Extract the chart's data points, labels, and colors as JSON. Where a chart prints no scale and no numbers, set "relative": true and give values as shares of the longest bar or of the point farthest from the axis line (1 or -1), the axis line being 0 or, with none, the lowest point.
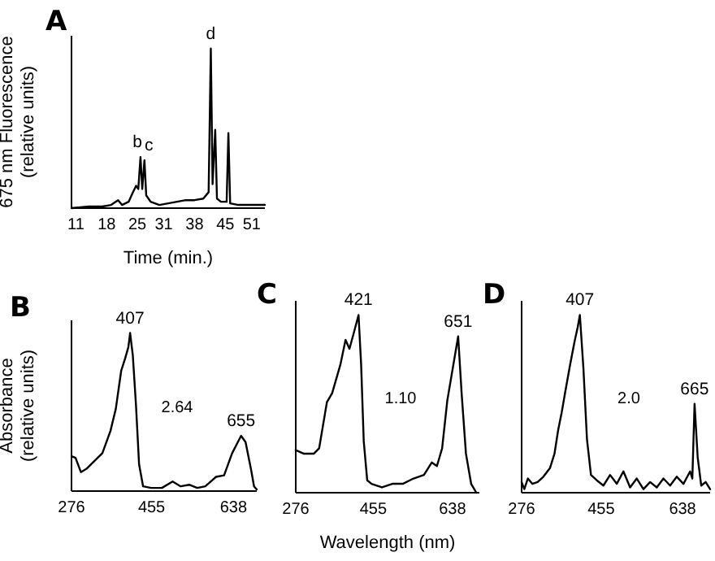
{
  "chart_data": [
    {
      "type": "line",
      "title": "A",
      "xlabel": "Time (min.)",
      "ylabel": "675 nm Fluorescence\n(relative units)",
      "relative": true,
      "tick_labels": "x",
      "xlim": [
        10,
        54
      ],
      "xticks": [
        11,
        18,
        25,
        31,
        38,
        45,
        51
      ],
      "series": [
        {
          "color": "#000000",
          "x": [
            10,
            14,
            17,
            19,
            20.6,
            21.5,
            23,
            24,
            24.7,
            25.2,
            25.7,
            26.1,
            26.6,
            27,
            28,
            30,
            32,
            34,
            36,
            38,
            40,
            41.2,
            41.7,
            42.1,
            42.7,
            43.1,
            44,
            45.3,
            45.7,
            46.1,
            48,
            51,
            54
          ],
          "values": [
            0,
            0.01,
            0.01,
            0.02,
            0.05,
            0.02,
            0.04,
            0.1,
            0.14,
            0.12,
            0.32,
            0.12,
            0.3,
            0.08,
            0.04,
            0.02,
            0.03,
            0.04,
            0.05,
            0.05,
            0.06,
            0.1,
            1,
            0.15,
            0.49,
            0.06,
            0.04,
            0.04,
            0.47,
            0.03,
            0.02,
            0.02,
            0.02
          ]
        }
      ],
      "annotations": [
        {
          "text": "b",
          "x": 25,
          "y": 0.32
        },
        {
          "text": "c",
          "x": 27.6,
          "y": 0.3
        },
        {
          "text": "d",
          "x": 41.7,
          "y": 1
        }
      ]
    },
    {
      "type": "line",
      "title": "B",
      "ylabel": "Absorbance\n(relative units)",
      "relative": true,
      "tick_labels": "x",
      "xlim": [
        276,
        690
      ],
      "xticks": [
        276,
        455,
        638
      ],
      "series": [
        {
          "color": "#000000",
          "x": [
            276,
            285,
            297,
            309,
            327,
            345,
            363,
            375,
            387,
            396,
            403,
            407,
            413,
            420,
            427,
            436,
            454,
            478,
            502,
            520,
            539,
            557,
            575,
            599,
            617,
            635,
            655,
            665,
            677,
            684,
            690
          ],
          "values": [
            0.22,
            0.21,
            0.12,
            0.14,
            0.19,
            0.24,
            0.38,
            0.52,
            0.76,
            0.84,
            0.91,
            1,
            0.86,
            0.55,
            0.17,
            0.03,
            0.02,
            0.02,
            0.06,
            0.03,
            0.04,
            0.02,
            0.03,
            0.09,
            0.1,
            0.24,
            0.35,
            0.31,
            0.14,
            0.03,
            0.01
          ]
        }
      ],
      "annotations": [
        {
          "text": "407",
          "x": 407,
          "y": 1
        },
        {
          "text": "655",
          "x": 655,
          "y": 0.35
        },
        "2.64"
      ]
    },
    {
      "type": "line",
      "title": "C",
      "xlabel": "Wavelength (nm)",
      "relative": true,
      "tick_labels": "x",
      "xlim": [
        276,
        700
      ],
      "xticks": [
        276,
        455,
        638
      ],
      "series": [
        {
          "color": "#000000",
          "x": [
            276,
            294,
            318,
            330,
            348,
            360,
            379,
            391,
            400,
            409,
            421,
            427,
            433,
            441,
            451,
            475,
            499,
            523,
            548,
            572,
            590,
            602,
            614,
            626,
            651,
            659,
            669,
            681,
            693
          ],
          "values": [
            0.24,
            0.22,
            0.22,
            0.25,
            0.51,
            0.56,
            0.72,
            0.86,
            0.81,
            0.89,
            1,
            0.72,
            0.29,
            0.07,
            0.05,
            0.03,
            0.05,
            0.05,
            0.08,
            0.1,
            0.17,
            0.15,
            0.25,
            0.52,
            0.88,
            0.56,
            0.22,
            0.05,
            0
          ]
        }
      ],
      "annotations": [
        {
          "text": "421",
          "x": 421,
          "y": 1
        },
        {
          "text": "651",
          "x": 651,
          "y": 0.88
        },
        "1.10"
      ]
    },
    {
      "type": "line",
      "title": "D",
      "relative": true,
      "tick_labels": "x",
      "xlim": [
        276,
        700
      ],
      "xticks": [
        276,
        455,
        638
      ],
      "series": [
        {
          "color": "#000000",
          "x": [
            276,
            282,
            290,
            300,
            312,
            325,
            340,
            350,
            358,
            366,
            375,
            385,
            395,
            402,
            407,
            415,
            423,
            432,
            445,
            460,
            475,
            490,
            505,
            520,
            535,
            550,
            565,
            580,
            595,
            610,
            625,
            640,
            655,
            660,
            665,
            672,
            680,
            690,
            700
          ],
          "values": [
            0.06,
            0.02,
            0.08,
            0.05,
            0.06,
            0.09,
            0.14,
            0.22,
            0.35,
            0.45,
            0.58,
            0.72,
            0.85,
            0.93,
            1,
            0.7,
            0.3,
            0.1,
            0.07,
            0.04,
            0.1,
            0.05,
            0.12,
            0.03,
            0.08,
            0.02,
            0.06,
            0.03,
            0.08,
            0.04,
            0.09,
            0.05,
            0.12,
            0.08,
            0.5,
            0.2,
            0.04,
            0.06,
            0.02
          ]
        }
      ],
      "annotations": [
        {
          "text": "407",
          "x": 407,
          "y": 1
        },
        {
          "text": "665",
          "x": 665,
          "y": 0.5
        },
        "2.0"
      ]
    }
  ]
}
